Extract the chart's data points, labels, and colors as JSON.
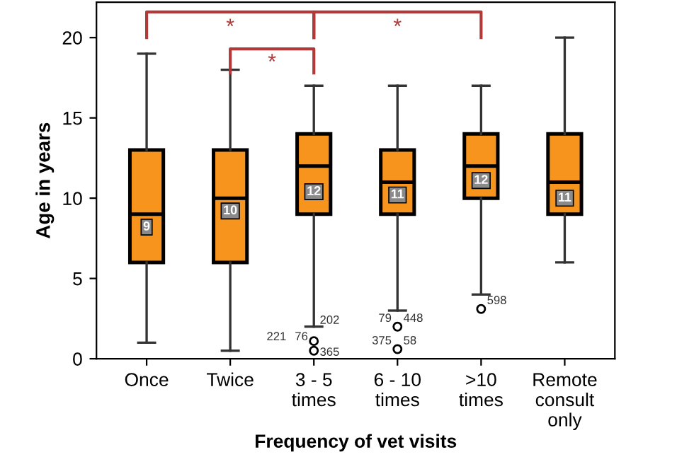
{
  "chart_data": {
    "type": "box",
    "xlabel": "Frequency of vet visits",
    "ylabel": "Age in years",
    "categories": [
      "Once",
      "Twice",
      "3 - 5\ntimes",
      "6 - 10\ntimes",
      ">10\ntimes",
      "Remote\nconsult\nonly"
    ],
    "color": "#f7941d",
    "boxes": [
      {
        "low": 1,
        "q1": 6,
        "median": 9,
        "q3": 13,
        "high": 19,
        "mean": 8.2
      },
      {
        "low": 0.5,
        "q1": 6,
        "median": 10,
        "q3": 13,
        "high": 18,
        "mean": 9.2
      },
      {
        "low": 2,
        "q1": 9,
        "median": 12,
        "q3": 14,
        "high": 17,
        "mean": 10.4,
        "outliers": [
          1.1,
          0.5
        ]
      },
      {
        "low": 3,
        "q1": 9,
        "median": 11,
        "q3": 13,
        "high": 17,
        "mean": 10.2,
        "outliers": [
          2,
          0.6
        ]
      },
      {
        "low": 4,
        "q1": 10,
        "median": 12,
        "q3": 14,
        "high": 17,
        "mean": 11.1,
        "outliers": [
          3.1
        ]
      },
      {
        "low": 6,
        "q1": 9,
        "median": 11,
        "q3": 14,
        "high": 20,
        "mean": 10
      }
    ],
    "ylim": [
      0,
      22.2
    ],
    "yticks": [
      0,
      5,
      10,
      15,
      20
    ],
    "grid": false,
    "annotations": [
      "9",
      "10",
      "12",
      "11",
      "12",
      "11",
      "202",
      "221",
      "76",
      "365",
      "79",
      "448",
      "375",
      "58",
      "598",
      "*",
      "*",
      "*"
    ]
  }
}
